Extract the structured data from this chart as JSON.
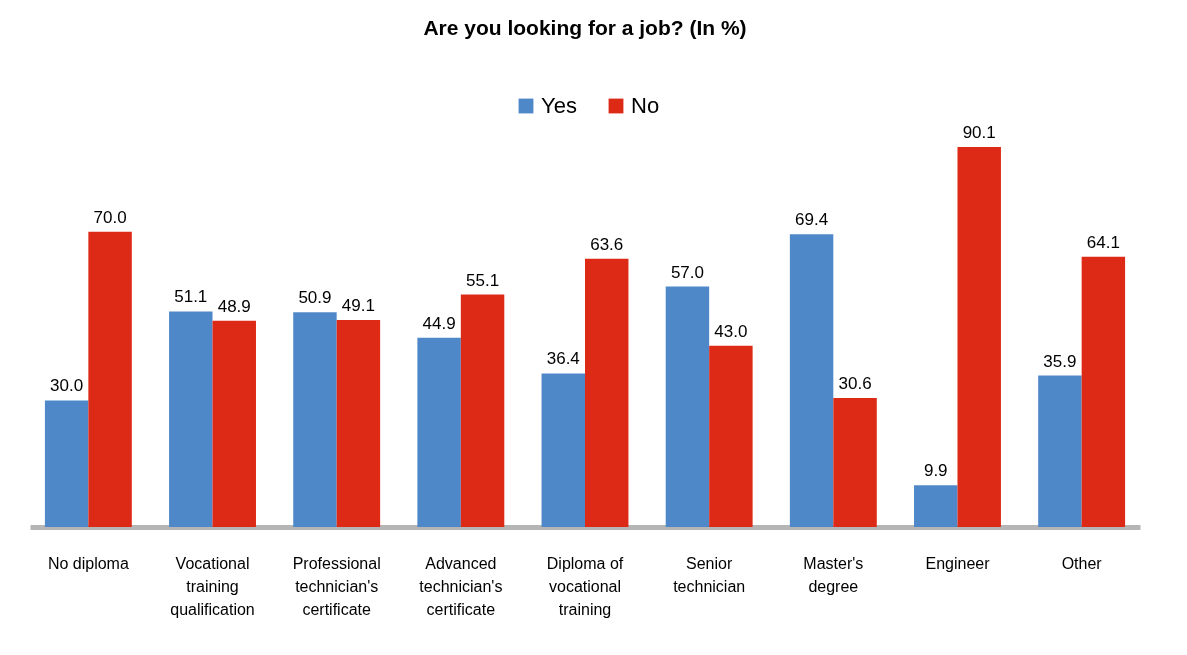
{
  "chart_data": {
    "type": "bar",
    "title": "Are you looking for a job? (In %)",
    "categories": [
      "No diploma",
      "Vocational training qualification",
      "Professional technician's certificate",
      "Advanced technician's certificate",
      "Diploma of vocational training",
      "Senior technician",
      "Master's degree",
      "Engineer",
      "Other"
    ],
    "series": [
      {
        "name": "Yes",
        "color": "#4f88c8",
        "values": [
          30.0,
          51.1,
          50.9,
          44.9,
          36.4,
          57.0,
          69.4,
          9.9,
          35.9
        ],
        "value_labels": [
          "30.0",
          "51.1",
          "50.9",
          "44.9",
          "36.4",
          "57.0",
          "69.4",
          "9.9",
          "35.9"
        ]
      },
      {
        "name": "No",
        "color": "#dd2a16",
        "values": [
          70.0,
          48.9,
          49.1,
          55.1,
          63.6,
          43.0,
          30.6,
          90.1,
          64.1
        ],
        "value_labels": [
          "70.0",
          "48.9",
          "49.1",
          "55.1",
          "63.6",
          "43.0",
          "30.6",
          "90.1",
          "64.1"
        ]
      }
    ],
    "legend": "top",
    "grid": false,
    "tick_labels": "x"
  }
}
